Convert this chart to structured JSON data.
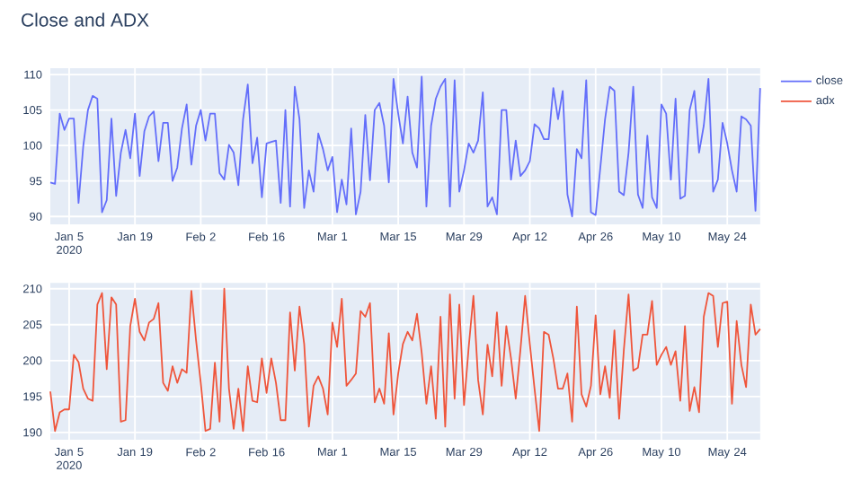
{
  "chart_data": [
    {
      "type": "line",
      "title": "Close and ADX",
      "grid": true,
      "legend": "top right",
      "x": [
        "2020-01-01",
        "2020-01-02",
        "2020-01-03",
        "2020-01-04",
        "2020-01-05",
        "2020-01-06",
        "2020-01-07",
        "2020-01-08",
        "2020-01-09",
        "2020-01-10",
        "2020-01-11",
        "2020-01-12",
        "2020-01-13",
        "2020-01-14",
        "2020-01-15",
        "2020-01-16",
        "2020-01-17",
        "2020-01-18",
        "2020-01-19",
        "2020-01-20",
        "2020-01-21",
        "2020-01-22",
        "2020-01-23",
        "2020-01-24",
        "2020-01-25",
        "2020-01-26",
        "2020-01-27",
        "2020-01-28",
        "2020-01-29",
        "2020-01-30",
        "2020-01-31",
        "2020-02-01",
        "2020-02-02",
        "2020-02-03",
        "2020-02-04",
        "2020-02-05",
        "2020-02-06",
        "2020-02-07",
        "2020-02-08",
        "2020-02-09",
        "2020-02-10",
        "2020-02-11",
        "2020-02-12",
        "2020-02-13",
        "2020-02-14",
        "2020-02-15",
        "2020-02-16",
        "2020-02-17",
        "2020-02-18",
        "2020-02-19",
        "2020-02-20",
        "2020-02-21",
        "2020-02-22",
        "2020-02-23",
        "2020-02-24",
        "2020-02-25",
        "2020-02-26",
        "2020-02-27",
        "2020-02-28",
        "2020-02-29",
        "2020-03-01",
        "2020-03-02",
        "2020-03-03",
        "2020-03-04",
        "2020-03-05",
        "2020-03-06",
        "2020-03-07",
        "2020-03-08",
        "2020-03-09",
        "2020-03-10",
        "2020-03-11",
        "2020-03-12",
        "2020-03-13",
        "2020-03-14",
        "2020-03-15",
        "2020-03-16",
        "2020-03-17",
        "2020-03-18",
        "2020-03-19",
        "2020-03-20",
        "2020-03-21",
        "2020-03-22",
        "2020-03-23",
        "2020-03-24",
        "2020-03-25",
        "2020-03-26",
        "2020-03-27",
        "2020-03-28",
        "2020-03-29",
        "2020-03-30",
        "2020-03-31",
        "2020-04-01",
        "2020-04-02",
        "2020-04-03",
        "2020-04-04",
        "2020-04-05",
        "2020-04-06",
        "2020-04-07",
        "2020-04-08",
        "2020-04-09",
        "2020-04-10",
        "2020-04-11",
        "2020-04-12",
        "2020-04-13",
        "2020-04-14",
        "2020-04-15",
        "2020-04-16",
        "2020-04-17",
        "2020-04-18",
        "2020-04-19",
        "2020-04-20",
        "2020-04-21",
        "2020-04-22",
        "2020-04-23",
        "2020-04-24",
        "2020-04-25",
        "2020-04-26",
        "2020-04-27",
        "2020-04-28",
        "2020-04-29",
        "2020-04-30",
        "2020-05-01",
        "2020-05-02",
        "2020-05-03",
        "2020-05-04",
        "2020-05-05",
        "2020-05-06",
        "2020-05-07",
        "2020-05-08",
        "2020-05-09",
        "2020-05-10",
        "2020-05-11",
        "2020-05-12",
        "2020-05-13",
        "2020-05-14",
        "2020-05-15",
        "2020-05-16",
        "2020-05-17",
        "2020-05-18",
        "2020-05-19",
        "2020-05-20",
        "2020-05-21",
        "2020-05-22",
        "2020-05-23",
        "2020-05-24",
        "2020-05-25",
        "2020-05-26",
        "2020-05-27",
        "2020-05-28",
        "2020-05-29",
        "2020-05-30",
        "2020-05-31"
      ],
      "xlim": [
        "2020-01-01",
        "2020-05-31"
      ],
      "xticks": [
        {
          "value": "2020-01-05",
          "label": "Jan 5 2020"
        },
        {
          "value": "2020-01-19",
          "label": "Jan 19"
        },
        {
          "value": "2020-02-02",
          "label": "Feb 2"
        },
        {
          "value": "2020-02-16",
          "label": "Feb 16"
        },
        {
          "value": "2020-03-01",
          "label": "Mar 1"
        },
        {
          "value": "2020-03-15",
          "label": "Mar 15"
        },
        {
          "value": "2020-03-29",
          "label": "Mar 29"
        },
        {
          "value": "2020-04-12",
          "label": "Apr 12"
        },
        {
          "value": "2020-04-26",
          "label": "Apr 26"
        },
        {
          "value": "2020-05-10",
          "label": "May 10"
        },
        {
          "value": "2020-05-24",
          "label": "May 24"
        }
      ],
      "ylim": [
        88.9,
        110.9
      ],
      "yticks": [
        90,
        95,
        100,
        105,
        110
      ],
      "series": [
        {
          "name": "close",
          "color": "#636efa",
          "values": [
            94.8,
            94.6,
            104.5,
            102.2,
            103.8,
            103.8,
            91.9,
            99.9,
            105,
            107,
            106.6,
            90.6,
            92.3,
            103.8,
            92.9,
            99,
            102.2,
            98.2,
            104.5,
            95.7,
            102,
            104.1,
            104.8,
            97.8,
            103.2,
            103.2,
            95,
            96.9,
            102.4,
            105.8,
            97.3,
            102.8,
            105,
            100.7,
            104.5,
            104.5,
            96.1,
            95.2,
            100.1,
            99,
            94.4,
            103.7,
            108.6,
            97.5,
            101.1,
            92.7,
            100.3,
            100.5,
            100.7,
            91.9,
            105,
            91.4,
            108.3,
            103.7,
            91.2,
            96.5,
            93.5,
            101.7,
            99.5,
            96.5,
            98.4,
            90.6,
            95.2,
            91.7,
            102.4,
            90.3,
            93.5,
            104.3,
            95.1,
            105,
            106,
            102.8,
            94.8,
            109.4,
            104.5,
            100.3,
            106.9,
            99,
            96.9,
            109.7,
            91.4,
            102.8,
            106.6,
            108.3,
            109.4,
            91.4,
            109.2,
            93.5,
            96.5,
            100.3,
            99,
            100.7,
            107.5,
            91.4,
            92.7,
            90.3,
            105,
            105,
            95.2,
            100.7,
            95.7,
            96.5,
            97.8,
            103,
            102.4,
            100.9,
            100.9,
            108.1,
            103.7,
            107.7,
            93.1,
            90,
            99.5,
            98.2,
            109.2,
            90.6,
            90.2,
            96.9,
            103.7,
            108.3,
            107.7,
            93.5,
            93,
            99,
            108.3,
            93.1,
            91.2,
            101.4,
            92.7,
            91.2,
            105.8,
            104.5,
            95.2,
            106.6,
            92.5,
            92.9,
            105,
            107.7,
            99,
            102.8,
            109.4,
            93.5,
            95.2,
            103.2,
            100.3,
            96.5,
            93.5,
            104.1,
            103.7,
            102.8,
            90.8,
            108.1
          ]
        }
      ]
    },
    {
      "type": "line",
      "grid": true,
      "x": [
        "2020-01-01",
        "2020-01-02",
        "2020-01-03",
        "2020-01-04",
        "2020-01-05",
        "2020-01-06",
        "2020-01-07",
        "2020-01-08",
        "2020-01-09",
        "2020-01-10",
        "2020-01-11",
        "2020-01-12",
        "2020-01-13",
        "2020-01-14",
        "2020-01-15",
        "2020-01-16",
        "2020-01-17",
        "2020-01-18",
        "2020-01-19",
        "2020-01-20",
        "2020-01-21",
        "2020-01-22",
        "2020-01-23",
        "2020-01-24",
        "2020-01-25",
        "2020-01-26",
        "2020-01-27",
        "2020-01-28",
        "2020-01-29",
        "2020-01-30",
        "2020-01-31",
        "2020-02-01",
        "2020-02-02",
        "2020-02-03",
        "2020-02-04",
        "2020-02-05",
        "2020-02-06",
        "2020-02-07",
        "2020-02-08",
        "2020-02-09",
        "2020-02-10",
        "2020-02-11",
        "2020-02-12",
        "2020-02-13",
        "2020-02-14",
        "2020-02-15",
        "2020-02-16",
        "2020-02-17",
        "2020-02-18",
        "2020-02-19",
        "2020-02-20",
        "2020-02-21",
        "2020-02-22",
        "2020-02-23",
        "2020-02-24",
        "2020-02-25",
        "2020-02-26",
        "2020-02-27",
        "2020-02-28",
        "2020-02-29",
        "2020-03-01",
        "2020-03-02",
        "2020-03-03",
        "2020-03-04",
        "2020-03-05",
        "2020-03-06",
        "2020-03-07",
        "2020-03-08",
        "2020-03-09",
        "2020-03-10",
        "2020-03-11",
        "2020-03-12",
        "2020-03-13",
        "2020-03-14",
        "2020-03-15",
        "2020-03-16",
        "2020-03-17",
        "2020-03-18",
        "2020-03-19",
        "2020-03-20",
        "2020-03-21",
        "2020-03-22",
        "2020-03-23",
        "2020-03-24",
        "2020-03-25",
        "2020-03-26",
        "2020-03-27",
        "2020-03-28",
        "2020-03-29",
        "2020-03-30",
        "2020-03-31",
        "2020-04-01",
        "2020-04-02",
        "2020-04-03",
        "2020-04-04",
        "2020-04-05",
        "2020-04-06",
        "2020-04-07",
        "2020-04-08",
        "2020-04-09",
        "2020-04-10",
        "2020-04-11",
        "2020-04-12",
        "2020-04-13",
        "2020-04-14",
        "2020-04-15",
        "2020-04-16",
        "2020-04-17",
        "2020-04-18",
        "2020-04-19",
        "2020-04-20",
        "2020-04-21",
        "2020-04-22",
        "2020-04-23",
        "2020-04-24",
        "2020-04-25",
        "2020-04-26",
        "2020-04-27",
        "2020-04-28",
        "2020-04-29",
        "2020-04-30",
        "2020-05-01",
        "2020-05-02",
        "2020-05-03",
        "2020-05-04",
        "2020-05-05",
        "2020-05-06",
        "2020-05-07",
        "2020-05-08",
        "2020-05-09",
        "2020-05-10",
        "2020-05-11",
        "2020-05-12",
        "2020-05-13",
        "2020-05-14",
        "2020-05-15",
        "2020-05-16",
        "2020-05-17",
        "2020-05-18",
        "2020-05-19",
        "2020-05-20",
        "2020-05-21",
        "2020-05-22",
        "2020-05-23",
        "2020-05-24",
        "2020-05-25",
        "2020-05-26",
        "2020-05-27",
        "2020-05-28",
        "2020-05-29",
        "2020-05-30",
        "2020-05-31"
      ],
      "xlim": [
        "2020-01-01",
        "2020-05-31"
      ],
      "xticks": [
        {
          "value": "2020-01-05",
          "label": "Jan 5 2020"
        },
        {
          "value": "2020-01-19",
          "label": "Jan 19"
        },
        {
          "value": "2020-02-02",
          "label": "Feb 2"
        },
        {
          "value": "2020-02-16",
          "label": "Feb 16"
        },
        {
          "value": "2020-03-01",
          "label": "Mar 1"
        },
        {
          "value": "2020-03-15",
          "label": "Mar 15"
        },
        {
          "value": "2020-03-29",
          "label": "Mar 29"
        },
        {
          "value": "2020-04-12",
          "label": "Apr 12"
        },
        {
          "value": "2020-04-26",
          "label": "Apr 26"
        },
        {
          "value": "2020-05-10",
          "label": "May 10"
        },
        {
          "value": "2020-05-24",
          "label": "May 24"
        }
      ],
      "ylim": [
        189,
        210.8
      ],
      "yticks": [
        190,
        195,
        200,
        205,
        210
      ],
      "series": [
        {
          "name": "adx",
          "color": "#ef553b",
          "values": [
            195.7,
            190.2,
            192.8,
            193.2,
            193.2,
            200.8,
            199.8,
            196.1,
            194.7,
            194.4,
            207.8,
            209.4,
            198.8,
            208.8,
            207.8,
            191.5,
            191.7,
            204.8,
            208.6,
            204,
            202.8,
            205.3,
            205.8,
            208,
            196.9,
            195.8,
            199.2,
            196.9,
            198.8,
            198.3,
            209.7,
            202.8,
            196.9,
            190.2,
            190.5,
            199.7,
            191.5,
            210,
            196.1,
            190.5,
            196.1,
            190.2,
            199.2,
            194.4,
            194.2,
            200.3,
            195.5,
            200.3,
            196.9,
            191.7,
            191.7,
            206.7,
            198.6,
            207.5,
            202.3,
            190.8,
            196.5,
            197.8,
            196.1,
            192.5,
            205.3,
            201.9,
            208.6,
            196.5,
            197.3,
            198.2,
            206.9,
            206.1,
            208,
            194.2,
            196.1,
            194,
            203.8,
            192.5,
            198.2,
            202.3,
            204,
            202.8,
            206.5,
            201.1,
            194,
            199.2,
            191.9,
            206.1,
            190.8,
            209.2,
            194.7,
            207.8,
            193.8,
            201.9,
            209,
            197.3,
            192.5,
            202.2,
            197.8,
            206.7,
            196.5,
            204.8,
            200.3,
            194.7,
            201.5,
            209,
            202.3,
            196.1,
            190.2,
            204,
            203.6,
            200.3,
            196.1,
            196.1,
            198.2,
            191.5,
            207.5,
            195.3,
            193.6,
            196.5,
            206.3,
            195.3,
            199.2,
            194.8,
            204.2,
            191.9,
            201.5,
            209.2,
            198.6,
            199,
            203.6,
            203.6,
            208.3,
            199.4,
            200.8,
            201.9,
            199.4,
            201.3,
            194.4,
            204.8,
            193,
            196.3,
            192.8,
            206.1,
            209.4,
            209,
            201.9,
            208,
            208.2,
            194,
            205.5,
            199.4,
            196.3,
            207.8,
            203.6,
            204.4
          ]
        }
      ]
    }
  ]
}
